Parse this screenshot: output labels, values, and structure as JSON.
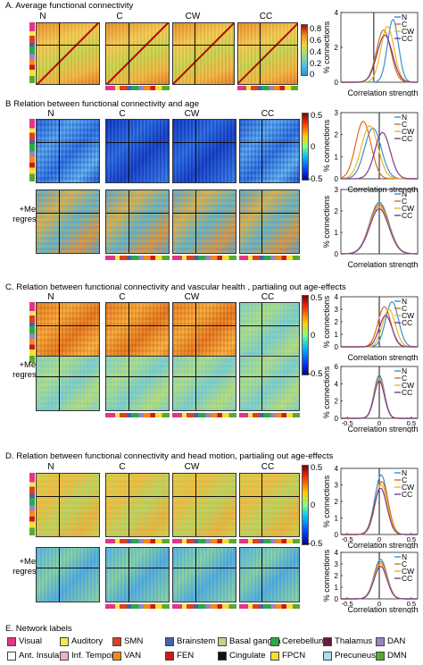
{
  "sections": {
    "a": {
      "title": "A. Average functional connectivity"
    },
    "b": {
      "title": "B Relation between functional connectivity and age"
    },
    "c": {
      "title": "C. Relation between functional connectivity and vascular health , partialing out age-effects"
    },
    "d": {
      "title": "D. Relation between functional connectivity and head motion, partialing out age-effects"
    },
    "e": {
      "title": "E. Network labels"
    }
  },
  "columns": [
    "N",
    "C",
    "CW",
    "CC"
  ],
  "row_label": {
    "line1": "+Mean",
    "line2": "regression"
  },
  "colorbars": {
    "a": {
      "ticks": [
        "0.8",
        "0.6",
        "0.4",
        "0.2",
        "0"
      ]
    },
    "b": {
      "ticks": [
        "0.5",
        "0",
        "-0.5"
      ]
    },
    "c": {
      "ticks": [
        "0.5",
        "0",
        "-0.5"
      ]
    },
    "d": {
      "ticks": [
        "0.5",
        "0",
        "-0.5"
      ]
    }
  },
  "colors": {
    "N": "#3a8fd0",
    "C": "#e06a1c",
    "CW": "#e8b825",
    "CC": "#7a3a8c"
  },
  "chart_data": [
    {
      "id": "density-a",
      "type": "line",
      "ylabel": "% connections",
      "xlabel": "Correlation strength",
      "xlim": [
        -0.6,
        0.8
      ],
      "ylim": [
        0,
        4
      ],
      "yticks": [
        "4",
        "2",
        "0"
      ],
      "xticks": [],
      "vline": 0,
      "legend": [
        "N",
        "C",
        "CW",
        "CC"
      ],
      "series": [
        {
          "name": "N",
          "mean": 0.35,
          "sd": 0.1,
          "peak": 3.6
        },
        {
          "name": "C",
          "mean": 0.18,
          "sd": 0.13,
          "peak": 3.0
        },
        {
          "name": "CW",
          "mean": 0.25,
          "sd": 0.12,
          "peak": 3.2
        },
        {
          "name": "CC",
          "mean": 0.2,
          "sd": 0.14,
          "peak": 2.7
        }
      ]
    },
    {
      "id": "density-b1",
      "type": "line",
      "ylabel": "% connections",
      "xlabel": "Correlation strength",
      "xlim": [
        -0.6,
        0.6
      ],
      "ylim": [
        0,
        3
      ],
      "yticks": [
        "3",
        "2",
        "1",
        "0"
      ],
      "xticks": [],
      "vline": 0,
      "legend": [
        "N",
        "C",
        "CW",
        "CC"
      ],
      "series": [
        {
          "name": "N",
          "mean": -0.1,
          "sd": 0.13,
          "peak": 2.3
        },
        {
          "name": "C",
          "mean": -0.25,
          "sd": 0.12,
          "peak": 2.6
        },
        {
          "name": "CW",
          "mean": -0.15,
          "sd": 0.13,
          "peak": 2.4
        },
        {
          "name": "CC",
          "mean": 0.05,
          "sd": 0.12,
          "peak": 2.1
        }
      ]
    },
    {
      "id": "density-b2",
      "type": "line",
      "ylabel": "% connections",
      "xlabel": "Correlation strength",
      "xlim": [
        -0.6,
        0.6
      ],
      "ylim": [
        0,
        3
      ],
      "yticks": [
        "3",
        "2",
        "1",
        "0"
      ],
      "xticks": [],
      "vline": 0,
      "legend": [
        "N",
        "C",
        "CW",
        "CC"
      ],
      "series": [
        {
          "name": "N",
          "mean": 0.0,
          "sd": 0.15,
          "peak": 2.4
        },
        {
          "name": "C",
          "mean": 0.0,
          "sd": 0.15,
          "peak": 2.3
        },
        {
          "name": "CW",
          "mean": 0.0,
          "sd": 0.15,
          "peak": 2.2
        },
        {
          "name": "CC",
          "mean": 0.0,
          "sd": 0.15,
          "peak": 2.1
        }
      ]
    },
    {
      "id": "density-c1",
      "type": "line",
      "ylabel": "% connections",
      "xlabel": "Correlation strength",
      "xlim": [
        -0.6,
        0.6
      ],
      "ylim": [
        0,
        4
      ],
      "yticks": [
        "4",
        "3",
        "2",
        "1",
        "0"
      ],
      "xticks": [],
      "vline": 0,
      "legend": [
        "N",
        "C",
        "CW",
        "CC"
      ],
      "series": [
        {
          "name": "N",
          "mean": 0.2,
          "sd": 0.1,
          "peak": 3.6
        },
        {
          "name": "C",
          "mean": 0.08,
          "sd": 0.1,
          "peak": 3.2
        },
        {
          "name": "CW",
          "mean": 0.15,
          "sd": 0.1,
          "peak": 3.0
        },
        {
          "name": "CC",
          "mean": 0.1,
          "sd": 0.1,
          "peak": 2.5
        }
      ]
    },
    {
      "id": "density-c2",
      "type": "line",
      "ylabel": "% connections",
      "xlabel": "Correlation strength",
      "xlim": [
        -0.6,
        0.6
      ],
      "ylim": [
        0,
        6
      ],
      "yticks": [
        "6",
        "4",
        "2",
        "0"
      ],
      "xticks": [
        "-0.5",
        "0",
        "0.5"
      ],
      "vline": 0,
      "legend": [
        "N",
        "C",
        "CW",
        "CC"
      ],
      "series": [
        {
          "name": "N",
          "mean": 0.0,
          "sd": 0.08,
          "peak": 5.0
        },
        {
          "name": "C",
          "mean": 0.0,
          "sd": 0.08,
          "peak": 4.6
        },
        {
          "name": "CW",
          "mean": 0.0,
          "sd": 0.08,
          "peak": 4.5
        },
        {
          "name": "CC",
          "mean": 0.0,
          "sd": 0.08,
          "peak": 4.3
        }
      ]
    },
    {
      "id": "density-d1",
      "type": "line",
      "ylabel": "% connections",
      "xlabel": "Correlation strength",
      "xlim": [
        -0.6,
        0.6
      ],
      "ylim": [
        0,
        4
      ],
      "yticks": [
        "4",
        "3",
        "2",
        "1",
        "0"
      ],
      "xticks": [
        "-0.5",
        "0",
        "0.5"
      ],
      "vline": 0,
      "legend": [
        "N",
        "C",
        "CW",
        "CC"
      ],
      "series": [
        {
          "name": "N",
          "mean": 0.03,
          "sd": 0.1,
          "peak": 3.6
        },
        {
          "name": "C",
          "mean": 0.04,
          "sd": 0.1,
          "peak": 3.2
        },
        {
          "name": "CW",
          "mean": 0.03,
          "sd": 0.1,
          "peak": 3.0
        },
        {
          "name": "CC",
          "mean": 0.02,
          "sd": 0.1,
          "peak": 2.8
        }
      ]
    },
    {
      "id": "density-d2",
      "type": "line",
      "ylabel": "% connections",
      "xlabel": "Correlation strength",
      "xlim": [
        -0.6,
        0.6
      ],
      "ylim": [
        0,
        4
      ],
      "yticks": [
        "4",
        "3",
        "2",
        "1",
        "0"
      ],
      "xticks": [
        "-0.5",
        "0",
        "0.5"
      ],
      "vline": 0,
      "legend": [
        "N",
        "C",
        "CW",
        "CC"
      ],
      "series": [
        {
          "name": "N",
          "mean": 0.02,
          "sd": 0.1,
          "peak": 3.4
        },
        {
          "name": "C",
          "mean": 0.02,
          "sd": 0.1,
          "peak": 3.2
        },
        {
          "name": "CW",
          "mean": 0.02,
          "sd": 0.1,
          "peak": 3.0
        },
        {
          "name": "CC",
          "mean": 0.02,
          "sd": 0.1,
          "peak": 2.8
        }
      ]
    }
  ],
  "network_labels": [
    {
      "label": "Visual",
      "color": "#e0358a"
    },
    {
      "label": "Auditory",
      "color": "#f5e94a"
    },
    {
      "label": "SMN",
      "color": "#d8421e"
    },
    {
      "label": "Brainstem",
      "color": "#4a5faa"
    },
    {
      "label": "Basal ganglia",
      "color": "#c8d08a"
    },
    {
      "label": "Cerebellum",
      "color": "#2aa84a"
    },
    {
      "label": "Thalamus",
      "color": "#6a1a3a"
    },
    {
      "label": "DAN",
      "color": "#9a84c4"
    },
    {
      "label": "Ant. Insula",
      "color": "#ffffff"
    },
    {
      "label": "Inf. Temporal",
      "color": "#f0b0c8"
    },
    {
      "label": "VAN",
      "color": "#f08a1c"
    },
    {
      "label": "FEN",
      "color": "#cc1818"
    },
    {
      "label": "Cingulate",
      "color": "#111111"
    },
    {
      "label": "FPCN",
      "color": "#f5e030"
    },
    {
      "label": "Precuneus",
      "color": "#a8e0f0"
    },
    {
      "label": "DMN",
      "color": "#5aa830"
    }
  ]
}
